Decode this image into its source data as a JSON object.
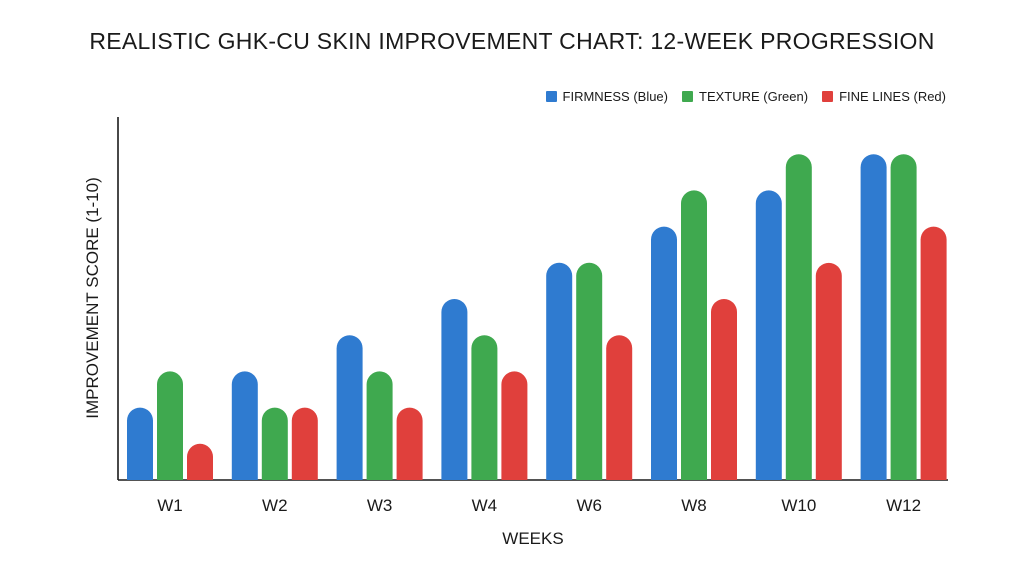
{
  "chart_data": {
    "type": "bar",
    "title": "REALISTIC GHK-CU SKIN IMPROVEMENT CHART: 12-WEEK PROGRESSION",
    "xlabel": "WEEKS",
    "ylabel": "IMPROVEMENT SCORE (1-10)",
    "categories": [
      "W1",
      "W2",
      "W3",
      "W4",
      "W6",
      "W8",
      "W10",
      "W12"
    ],
    "ylim": [
      0,
      10
    ],
    "grid": false,
    "legend_placement": "top-right",
    "series": [
      {
        "name": "FIRMNESS (Blue)",
        "color": "#2F7BD0",
        "values": [
          2,
          3,
          4,
          5,
          6,
          7,
          8,
          9
        ]
      },
      {
        "name": "TEXTURE (Green)",
        "color": "#3FA94F",
        "values": [
          3,
          2,
          3,
          4,
          6,
          8,
          9,
          9
        ]
      },
      {
        "name": "FINE LINES (Red)",
        "color": "#E0403C",
        "values": [
          1,
          2,
          2,
          3,
          4,
          5,
          6,
          7
        ]
      }
    ]
  }
}
